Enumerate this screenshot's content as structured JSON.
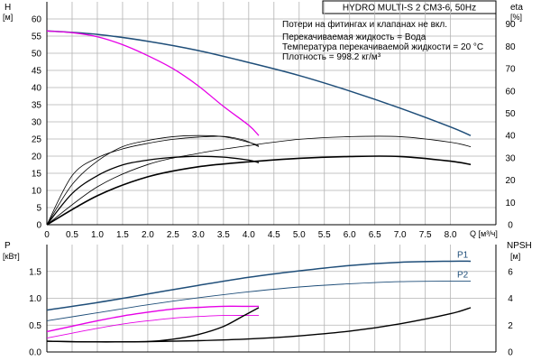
{
  "chart_data": [
    {
      "type": "line",
      "title": "HYDRO MULTI-S 2 CM3-6, 50Hz",
      "ylabel_left": "H",
      "ylabel_left_unit": "[м]",
      "ylabel_right": "eta",
      "ylabel_right_unit": "[%]",
      "xlabel": "Q [м³/ч]",
      "xlim": [
        0,
        8.9
      ],
      "ylim_left": [
        0,
        65
      ],
      "ylim_right": [
        0,
        100
      ],
      "x_ticks": [
        "0",
        "0.5",
        "1.0",
        "1.5",
        "2.0",
        "2.5",
        "3.0",
        "3.5",
        "4.0",
        "4.5",
        "5.0",
        "5.5",
        "6.0",
        "6.5",
        "7.0",
        "7.5",
        "8.0"
      ],
      "x_tick_values": [
        0,
        0.5,
        1.0,
        1.5,
        2.0,
        2.5,
        3.0,
        3.5,
        4.0,
        4.5,
        5.0,
        5.5,
        6.0,
        6.5,
        7.0,
        7.5,
        8.0
      ],
      "y_left_ticks": [
        0,
        5,
        10,
        15,
        20,
        25,
        30,
        35,
        40,
        45,
        50,
        55,
        60
      ],
      "y_right_ticks": [
        0,
        10,
        20,
        30,
        40,
        50,
        60,
        70,
        80,
        90
      ],
      "grid": true,
      "annotations": [
        "Потери на фитингах и клапанах не вкл.",
        "Перекачиваемая жидкость = Вода",
        "Температура перекачиваемой жидкости = 20 °C",
        "Плотность = 998.2 кг/м³"
      ],
      "series": [
        {
          "axis": "left",
          "color": "#1f4e79",
          "width": 1.5,
          "x": [
            0,
            1,
            2,
            3,
            4,
            5,
            6,
            7,
            8,
            8.4
          ],
          "y": [
            56.5,
            55.5,
            53.5,
            50.8,
            47.3,
            43.5,
            39,
            34,
            28.5,
            26
          ]
        },
        {
          "axis": "left",
          "color": "#e600e6",
          "width": 1.3,
          "x": [
            0,
            0.5,
            1,
            1.5,
            2,
            2.5,
            3,
            3.5,
            4,
            4.2
          ],
          "y": [
            56.5,
            56,
            54.8,
            52.5,
            49.3,
            45.5,
            40.5,
            34.5,
            29,
            26
          ]
        },
        {
          "axis": "right",
          "color": "#000000",
          "width": 1.6,
          "x": [
            0,
            1,
            2,
            3,
            4,
            5,
            6,
            7,
            8,
            8.4
          ],
          "y": [
            0,
            13,
            21.5,
            26,
            28.2,
            29.8,
            30.6,
            30.6,
            28.5,
            27
          ]
        },
        {
          "axis": "right",
          "color": "#000000",
          "width": 0.8,
          "x": [
            0,
            1,
            2,
            3,
            4,
            5,
            6,
            7,
            8,
            8.4
          ],
          "y": [
            0,
            17,
            27,
            32,
            35.5,
            38.3,
            39.5,
            39.5,
            37,
            35
          ]
        },
        {
          "axis": "right",
          "color": "#000000",
          "width": 1.3,
          "x": [
            0,
            0.5,
            1,
            1.5,
            2,
            2.5,
            3,
            3.5,
            4,
            4.2
          ],
          "y": [
            0,
            14,
            22,
            26.8,
            29,
            30.2,
            30.7,
            30.3,
            29,
            27.8
          ]
        },
        {
          "axis": "right",
          "color": "#000000",
          "width": 0.8,
          "x": [
            0,
            0.5,
            1,
            1.5,
            2,
            2.5,
            3,
            3.5,
            4,
            4.2
          ],
          "y": [
            0,
            18,
            28.5,
            35,
            37.8,
            39.5,
            40,
            39.5,
            37,
            35.5
          ]
        },
        {
          "axis": "right",
          "color": "#000000",
          "width": 0.8,
          "x": [
            0,
            0.5,
            1,
            1.5,
            2,
            2.5,
            3,
            3.5,
            3.9,
            4.2
          ],
          "y": [
            0,
            22,
            30,
            34,
            36.5,
            38.3,
            39.3,
            39.6,
            38,
            35
          ]
        }
      ]
    },
    {
      "type": "line",
      "ylabel_left": "P",
      "ylabel_left_unit": "[кВт]",
      "ylabel_right": "NPSH",
      "ylabel_right_unit": "[м]",
      "xlim": [
        0,
        8.9
      ],
      "ylim_left": [
        0,
        2.0
      ],
      "ylim_right": [
        0,
        8
      ],
      "y_left_ticks": [
        "0.0",
        "0.5",
        "1.0",
        "1.5"
      ],
      "y_left_tick_values": [
        0,
        0.5,
        1.0,
        1.5
      ],
      "y_right_ticks": [
        0,
        2,
        4,
        6
      ],
      "grid": true,
      "series": [
        {
          "name": "P1",
          "axis": "left",
          "color": "#1f4e79",
          "width": 1.5,
          "x": [
            0,
            1,
            2,
            3,
            4,
            5,
            6,
            7,
            8,
            8.4
          ],
          "y": [
            0.78,
            0.92,
            1.08,
            1.24,
            1.39,
            1.51,
            1.61,
            1.67,
            1.69,
            1.69
          ]
        },
        {
          "name": "P2",
          "axis": "left",
          "color": "#1f4e79",
          "width": 0.9,
          "x": [
            0,
            1,
            2,
            3,
            4,
            5,
            6,
            7,
            8,
            8.4
          ],
          "y": [
            0.58,
            0.73,
            0.88,
            1.01,
            1.12,
            1.21,
            1.27,
            1.31,
            1.32,
            1.32
          ]
        },
        {
          "axis": "left",
          "color": "#e600e6",
          "width": 1.4,
          "x": [
            0,
            0.5,
            1,
            1.5,
            2,
            2.5,
            3,
            3.5,
            4,
            4.2
          ],
          "y": [
            0.38,
            0.48,
            0.58,
            0.67,
            0.74,
            0.8,
            0.83,
            0.85,
            0.85,
            0.85
          ]
        },
        {
          "axis": "left",
          "color": "#e600e6",
          "width": 0.9,
          "x": [
            0,
            0.5,
            1,
            1.5,
            2,
            2.5,
            3,
            3.5,
            4,
            4.2
          ],
          "y": [
            0.26,
            0.35,
            0.44,
            0.52,
            0.58,
            0.63,
            0.66,
            0.68,
            0.68,
            0.68
          ]
        },
        {
          "axis": "right",
          "color": "#000000",
          "width": 1.4,
          "x": [
            0,
            1,
            2,
            3,
            4,
            5,
            6,
            7,
            8,
            8.4
          ],
          "y": [
            0.8,
            0.75,
            0.77,
            0.84,
            0.97,
            1.2,
            1.55,
            2.1,
            2.85,
            3.3
          ]
        },
        {
          "axis": "right",
          "color": "#000000",
          "width": 1.4,
          "x": [
            0,
            1,
            2,
            2.5,
            3,
            3.5,
            3.9,
            4.2
          ],
          "y": [
            0.8,
            0.75,
            0.78,
            0.95,
            1.3,
            1.9,
            2.7,
            3.3
          ]
        }
      ]
    }
  ]
}
